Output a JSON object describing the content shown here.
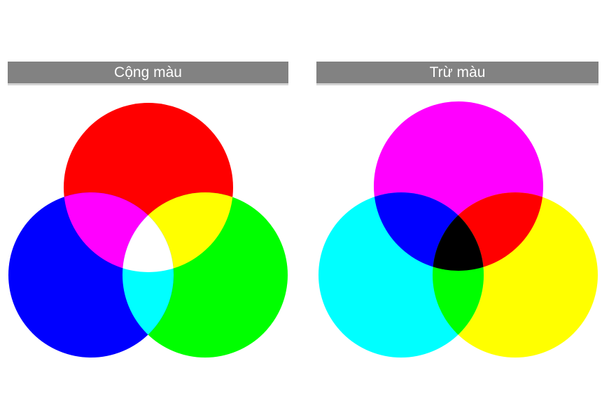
{
  "additive": {
    "title": "Cộng màu",
    "circles": [
      {
        "name": "red",
        "color": "#ff0000"
      },
      {
        "name": "green",
        "color": "#00ff00"
      },
      {
        "name": "blue",
        "color": "#0000ff"
      }
    ],
    "overlaps": {
      "red_green": "#ffff00",
      "red_blue": "#ff00ff",
      "green_blue": "#00ffff",
      "center": "#ffffff"
    }
  },
  "subtractive": {
    "title": "Trừ màu",
    "circles": [
      {
        "name": "magenta",
        "color": "#ff00ff"
      },
      {
        "name": "yellow",
        "color": "#ffff00"
      },
      {
        "name": "cyan",
        "color": "#00ffff"
      }
    ],
    "overlaps": {
      "magenta_yellow": "#ff0000",
      "magenta_cyan": "#0000ff",
      "yellow_cyan": "#00ff00",
      "center": "#000000"
    }
  }
}
